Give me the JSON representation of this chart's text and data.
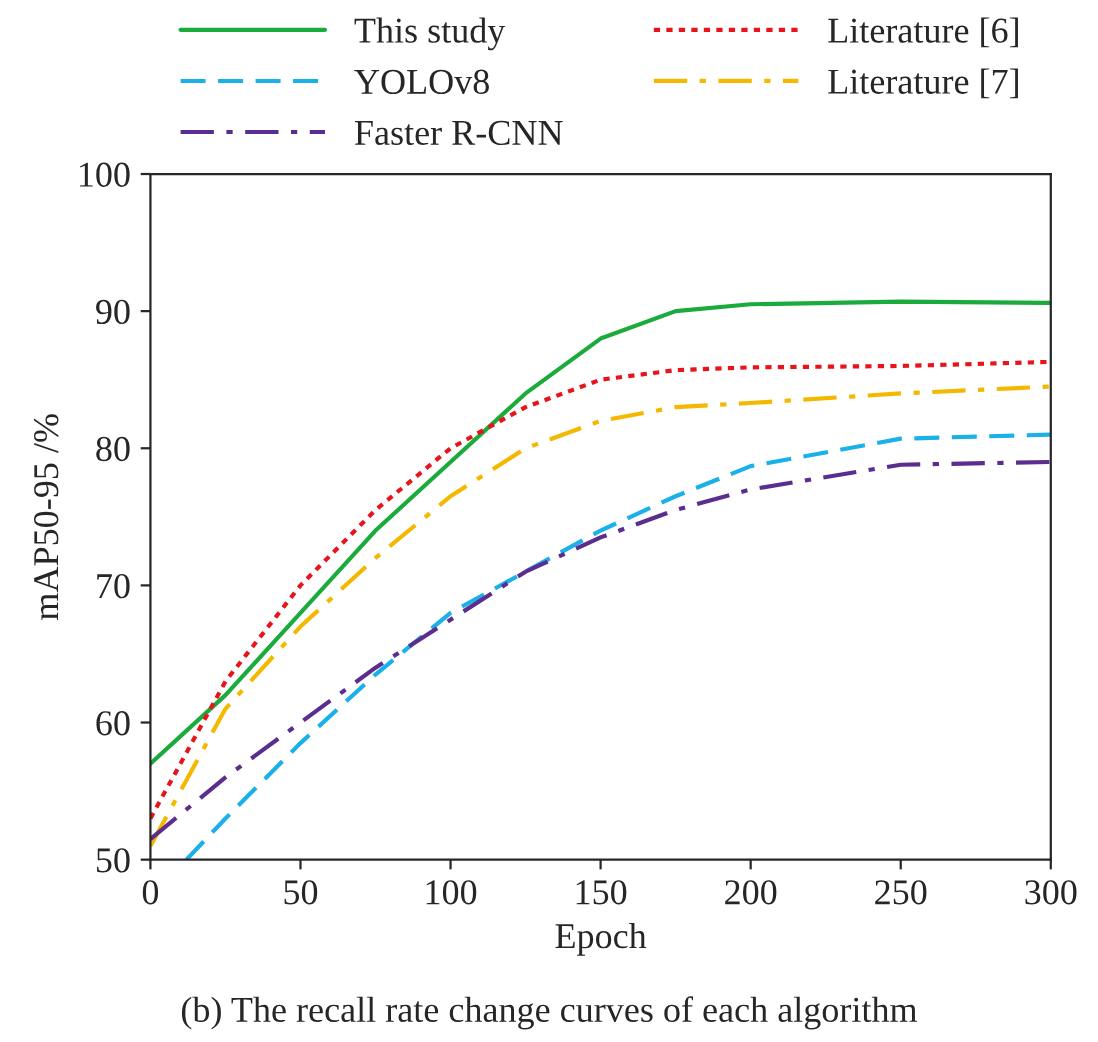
{
  "chart_data": {
    "type": "line",
    "xlabel": "Epoch",
    "ylabel": "mAP50-95 /%",
    "annotations": [
      "(b) The recall rate change curves of each algorithm"
    ],
    "xlim": [
      0,
      300
    ],
    "xticks": [
      0,
      50,
      100,
      150,
      200,
      250,
      300
    ],
    "ylim": [
      50,
      100
    ],
    "yticks": [
      50,
      60,
      70,
      80,
      90,
      100
    ],
    "grid": false,
    "legend": "top",
    "marker": "none",
    "series": [
      {
        "name": "This study",
        "color": "#1aab3c",
        "line_style": "solid",
        "x": [
          0,
          25,
          50,
          75,
          100,
          125,
          150,
          175,
          200,
          250,
          300
        ],
        "values": [
          57,
          62,
          68,
          74,
          79,
          84,
          88,
          90,
          90.5,
          90.7,
          90.6
        ]
      },
      {
        "name": "Literature [6]",
        "color": "#e8141c",
        "line_style": "dotted",
        "x": [
          0,
          25,
          50,
          75,
          100,
          125,
          150,
          175,
          200,
          250,
          300
        ],
        "values": [
          53,
          63,
          70,
          75.5,
          80,
          83,
          85,
          85.7,
          85.9,
          86,
          86.3
        ]
      },
      {
        "name": "YOLOv8",
        "color": "#1ab0e8",
        "line_style": "dashed",
        "x": [
          12,
          25,
          50,
          75,
          100,
          125,
          150,
          175,
          200,
          250,
          300
        ],
        "values": [
          50,
          53,
          58.5,
          63.5,
          68,
          71,
          74,
          76.5,
          78.7,
          80.7,
          81
        ]
      },
      {
        "name": "Literature [7]",
        "color": "#f5b800",
        "line_style": "dashdot",
        "x": [
          0,
          25,
          50,
          75,
          100,
          125,
          150,
          175,
          200,
          250,
          300
        ],
        "values": [
          51,
          61,
          67,
          72,
          76.5,
          80,
          82,
          83,
          83.3,
          84,
          84.5
        ]
      },
      {
        "name": "Faster R-CNN",
        "color": "#5b2d8e",
        "line_style": "dashdot",
        "x": [
          0,
          25,
          50,
          75,
          100,
          125,
          150,
          175,
          200,
          250,
          300
        ],
        "values": [
          51.5,
          56,
          60,
          64,
          67.5,
          71,
          73.5,
          75.5,
          77,
          78.8,
          79
        ]
      }
    ]
  }
}
